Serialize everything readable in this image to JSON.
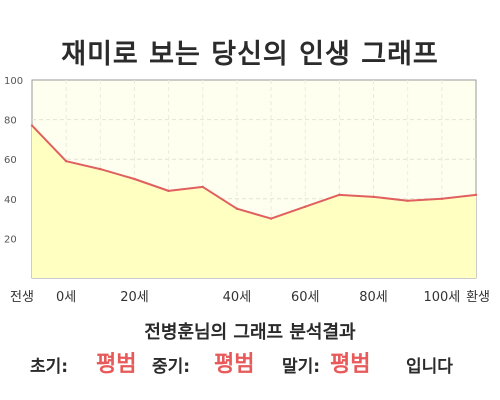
{
  "title": "재미로 보는 당신의 인생 그래프",
  "summary": "전병훈님의 그래프 분석결과",
  "result": {
    "early_label": "초기:",
    "early_value": "평범",
    "mid_label": "중기:",
    "mid_value": "평범",
    "late_label": "말기:",
    "late_value": "평범",
    "suffix": "입니다"
  },
  "colors": {
    "line": "#e06060",
    "fill": "#ffffc2",
    "highlight": "#e85a5a"
  },
  "chart_data": {
    "type": "area",
    "x_labels": [
      "전생",
      "0세",
      "20세",
      "40세",
      "60세",
      "80세",
      "100세",
      "환생"
    ],
    "points": [
      {
        "x": "전생",
        "y": 77
      },
      {
        "x": "0세",
        "y": 59
      },
      {
        "x": "",
        "y": 55
      },
      {
        "x": "20세",
        "y": 50
      },
      {
        "x": "",
        "y": 44
      },
      {
        "x": "",
        "y": 46
      },
      {
        "x": "40세",
        "y": 35
      },
      {
        "x": "",
        "y": 30
      },
      {
        "x": "60세",
        "y": 36
      },
      {
        "x": "",
        "y": 42
      },
      {
        "x": "80세",
        "y": 41
      },
      {
        "x": "",
        "y": 39
      },
      {
        "x": "100세",
        "y": 40
      },
      {
        "x": "환생",
        "y": 42
      }
    ],
    "yticks": [
      20,
      40,
      60,
      80,
      100
    ],
    "ylim": [
      0,
      100
    ],
    "grid": true
  }
}
